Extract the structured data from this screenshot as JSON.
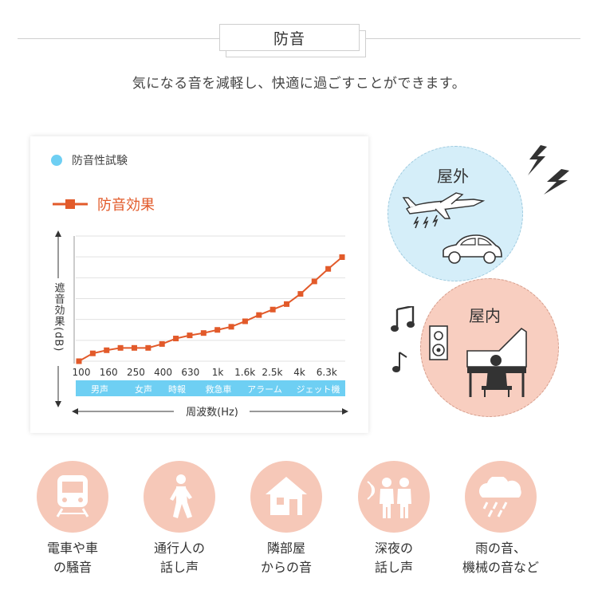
{
  "header": {
    "title": "防音",
    "subtitle": "気になる音を減軽し、快適に過ごすことができます。"
  },
  "chart_legend": {
    "test_label": "防音性試験",
    "series_label": "防音効果"
  },
  "chart_data": {
    "type": "line",
    "xlabel": "周波数(Hz)",
    "ylabel": "遮音効果(dB)",
    "x_ticks": [
      "100",
      "160",
      "250",
      "400",
      "630",
      "1k",
      "1.6k",
      "2.5k",
      "4k",
      "6.3k"
    ],
    "band_labels": [
      "男声",
      "女声",
      "時報",
      "救急車",
      "アラーム",
      "ジェット機"
    ],
    "series": [
      {
        "name": "防音効果",
        "color": "#e25a2a",
        "x": [
          "100",
          "125",
          "160",
          "200",
          "250",
          "315",
          "400",
          "500",
          "630",
          "800",
          "1k",
          "1.25k",
          "1.6k",
          "2k",
          "2.5k",
          "3.15k",
          "4k",
          "5k",
          "6.3k",
          "8k"
        ],
        "values": [
          0,
          10,
          14,
          17,
          17,
          17,
          22,
          29,
          33,
          36,
          40,
          44,
          51,
          59,
          66,
          73,
          86,
          102,
          118,
          133
        ]
      }
    ],
    "y_unit": "relative",
    "ylim": [
      0,
      160
    ],
    "grid": true
  },
  "scenes": {
    "outdoor_label": "屋外",
    "indoor_label": "屋内"
  },
  "categories": [
    {
      "line1": "電車や車",
      "line2": "の騒音",
      "icon": "train-icon"
    },
    {
      "line1": "通行人の",
      "line2": "話し声",
      "icon": "walking-person-icon"
    },
    {
      "line1": "隣部屋",
      "line2": "からの音",
      "icon": "house-icon"
    },
    {
      "line1": "深夜の",
      "line2": "話し声",
      "icon": "talking-people-icon"
    },
    {
      "line1": "雨の音、",
      "line2": "機械の音など",
      "icon": "rain-cloud-icon"
    }
  ],
  "colors": {
    "accent_line": "#e25a2a",
    "band_blue": "#6ecff3",
    "outdoor_circle": "#d5eef9",
    "indoor_circle": "#f8cec0",
    "category_circle": "#f6c8b8"
  }
}
